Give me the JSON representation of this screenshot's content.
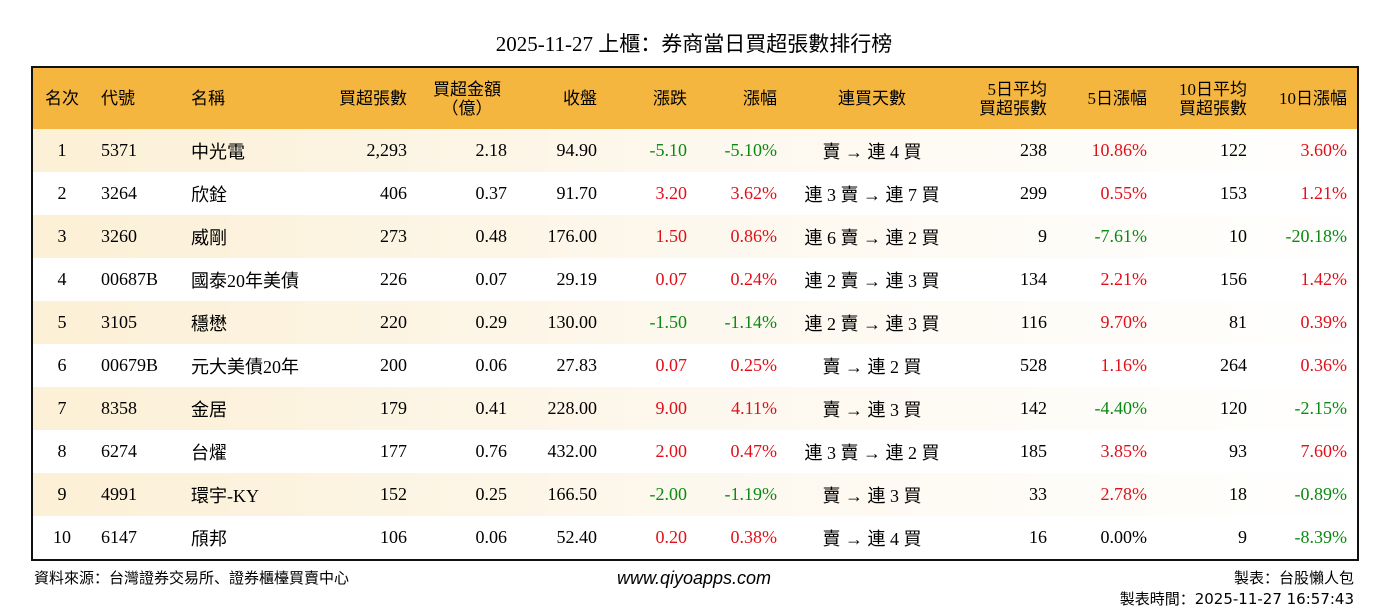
{
  "title": "2025-11-27 上櫃：券商當日買超張數排行榜",
  "table": {
    "headers": [
      [
        "名次"
      ],
      [
        "代號"
      ],
      [
        "名稱"
      ],
      [
        "買超張數"
      ],
      [
        "買超金額",
        "（億）"
      ],
      [
        "收盤"
      ],
      [
        "漲跌"
      ],
      [
        "漲幅"
      ],
      [
        "連買天數"
      ],
      [
        "5日平均",
        "買超張數"
      ],
      [
        "5日漲幅"
      ],
      [
        "10日平均",
        "買超張數"
      ],
      [
        "10日漲幅"
      ]
    ],
    "rows": [
      [
        "1",
        "5371",
        "中光電",
        "2,293",
        "2.18",
        "94.90",
        "-5.10",
        "-5.10%",
        "賣 → 連 4 買",
        "238",
        "10.86%",
        "122",
        "3.60%"
      ],
      [
        "2",
        "3264",
        "欣銓",
        "406",
        "0.37",
        "91.70",
        "3.20",
        "3.62%",
        "連 3 賣 → 連 7 買",
        "299",
        "0.55%",
        "153",
        "1.21%"
      ],
      [
        "3",
        "3260",
        "威剛",
        "273",
        "0.48",
        "176.00",
        "1.50",
        "0.86%",
        "連 6 賣 → 連 2 買",
        "9",
        "-7.61%",
        "10",
        "-20.18%"
      ],
      [
        "4",
        "00687B",
        "國泰20年美債",
        "226",
        "0.07",
        "29.19",
        "0.07",
        "0.24%",
        "連 2 賣 → 連 3 買",
        "134",
        "2.21%",
        "156",
        "1.42%"
      ],
      [
        "5",
        "3105",
        "穩懋",
        "220",
        "0.29",
        "130.00",
        "-1.50",
        "-1.14%",
        "連 2 賣 → 連 3 買",
        "116",
        "9.70%",
        "81",
        "0.39%"
      ],
      [
        "6",
        "00679B",
        "元大美債20年",
        "200",
        "0.06",
        "27.83",
        "0.07",
        "0.25%",
        "賣 → 連 2 買",
        "528",
        "1.16%",
        "264",
        "0.36%"
      ],
      [
        "7",
        "8358",
        "金居",
        "179",
        "0.41",
        "228.00",
        "9.00",
        "4.11%",
        "賣 → 連 3 買",
        "142",
        "-4.40%",
        "120",
        "-2.15%"
      ],
      [
        "8",
        "6274",
        "台燿",
        "177",
        "0.76",
        "432.00",
        "2.00",
        "0.47%",
        "連 3 賣 → 連 2 買",
        "185",
        "3.85%",
        "93",
        "7.60%"
      ],
      [
        "9",
        "4991",
        "環宇-KY",
        "152",
        "0.25",
        "166.50",
        "-2.00",
        "-1.19%",
        "賣 → 連 3 買",
        "33",
        "2.78%",
        "18",
        "-0.89%"
      ],
      [
        "10",
        "6147",
        "頎邦",
        "106",
        "0.06",
        "52.40",
        "0.20",
        "0.38%",
        "賣 → 連 4 買",
        "16",
        "0.00%",
        "9",
        "-8.39%"
      ]
    ]
  },
  "footer": {
    "source": "資料來源：台灣證券交易所、證券櫃檯買賣中心",
    "website": "www.qiyoapps.com",
    "author": "製表：台股懶人包",
    "time": "製表時間：2025-11-27 16:57:43"
  }
}
